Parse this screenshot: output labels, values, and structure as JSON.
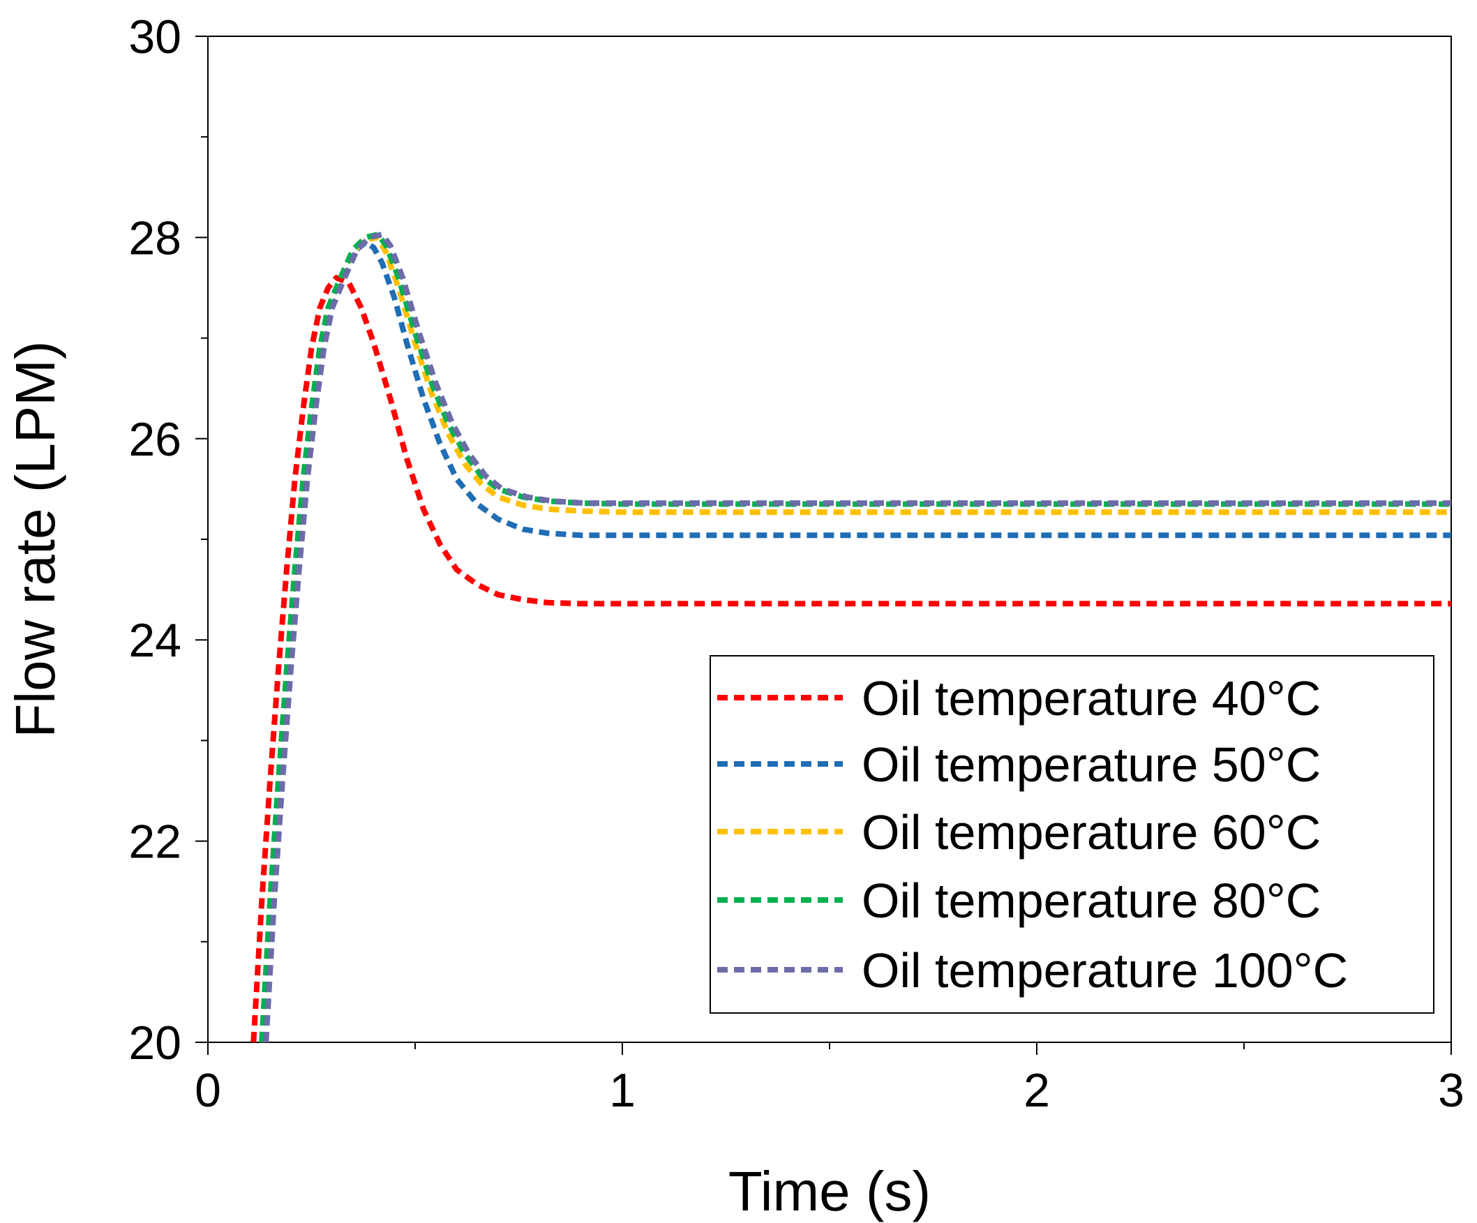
{
  "chart_data": {
    "type": "line",
    "title": "",
    "xlabel": "Time (s)",
    "ylabel": "Flow rate (LPM)",
    "xlim": [
      0,
      3
    ],
    "ylim": [
      20,
      30
    ],
    "x_ticks": [
      0,
      1,
      2,
      3
    ],
    "x_tick_labels": [
      "0",
      "1",
      "2",
      "3"
    ],
    "x_minor_ticks": [
      0.5,
      1.5,
      2.5
    ],
    "y_ticks": [
      20,
      22,
      24,
      26,
      28,
      30
    ],
    "y_tick_labels": [
      "20",
      "22",
      "24",
      "26",
      "28",
      "30"
    ],
    "y_minor_ticks": [
      21,
      23,
      25,
      27,
      29
    ],
    "grid": false,
    "legend_position": "bottom-right",
    "line_style": "dashed",
    "series": [
      {
        "name": "Oil temperature 40°C",
        "color": "#ff0000",
        "x": [
          0.11,
          0.13,
          0.15,
          0.17,
          0.19,
          0.21,
          0.23,
          0.25,
          0.27,
          0.29,
          0.31,
          0.34,
          0.37,
          0.4,
          0.44,
          0.48,
          0.52,
          0.56,
          0.6,
          0.65,
          0.7,
          0.76,
          0.82,
          0.9,
          1.0,
          1.2,
          1.5,
          2.0,
          2.5,
          3.0
        ],
        "values": [
          20.0,
          21.4,
          22.6,
          23.7,
          24.7,
          25.6,
          26.3,
          26.9,
          27.3,
          27.5,
          27.6,
          27.55,
          27.3,
          26.95,
          26.4,
          25.8,
          25.3,
          24.95,
          24.7,
          24.55,
          24.45,
          24.4,
          24.37,
          24.36,
          24.36,
          24.36,
          24.36,
          24.36,
          24.36,
          24.36
        ]
      },
      {
        "name": "Oil temperature 50°C",
        "color": "#1f6db5",
        "x": [
          0.13,
          0.15,
          0.17,
          0.19,
          0.21,
          0.23,
          0.25,
          0.27,
          0.29,
          0.32,
          0.35,
          0.38,
          0.4,
          0.42,
          0.45,
          0.48,
          0.52,
          0.56,
          0.6,
          0.65,
          0.7,
          0.76,
          0.82,
          0.9,
          1.0,
          1.2,
          1.5,
          2.0,
          2.5,
          3.0
        ],
        "values": [
          20.0,
          21.4,
          22.6,
          23.7,
          24.7,
          25.6,
          26.3,
          26.9,
          27.3,
          27.6,
          27.85,
          27.95,
          27.9,
          27.75,
          27.4,
          26.95,
          26.4,
          25.95,
          25.6,
          25.35,
          25.2,
          25.1,
          25.06,
          25.04,
          25.04,
          25.04,
          25.04,
          25.04,
          25.04,
          25.04
        ]
      },
      {
        "name": "Oil temperature 60°C",
        "color": "#ffc000",
        "x": [
          0.13,
          0.15,
          0.17,
          0.19,
          0.21,
          0.23,
          0.25,
          0.27,
          0.29,
          0.32,
          0.35,
          0.38,
          0.41,
          0.43,
          0.46,
          0.5,
          0.54,
          0.58,
          0.62,
          0.66,
          0.7,
          0.76,
          0.82,
          0.9,
          1.0,
          1.2,
          1.5,
          2.0,
          2.5,
          3.0
        ],
        "values": [
          20.0,
          21.4,
          22.6,
          23.7,
          24.7,
          25.6,
          26.3,
          26.9,
          27.3,
          27.6,
          27.85,
          27.98,
          28.0,
          27.85,
          27.5,
          26.95,
          26.45,
          26.05,
          25.75,
          25.55,
          25.42,
          25.34,
          25.3,
          25.28,
          25.27,
          25.27,
          25.27,
          25.27,
          25.27,
          25.27
        ]
      },
      {
        "name": "Oil temperature 80°C",
        "color": "#00b050",
        "x": [
          0.13,
          0.15,
          0.17,
          0.19,
          0.21,
          0.23,
          0.25,
          0.27,
          0.29,
          0.32,
          0.35,
          0.38,
          0.41,
          0.43,
          0.46,
          0.5,
          0.54,
          0.58,
          0.62,
          0.66,
          0.7,
          0.76,
          0.82,
          0.9,
          1.0,
          1.2,
          1.5,
          2.0,
          2.5,
          3.0
        ],
        "values": [
          20.0,
          21.4,
          22.6,
          23.7,
          24.7,
          25.6,
          26.3,
          26.9,
          27.3,
          27.6,
          27.88,
          28.0,
          28.03,
          27.92,
          27.6,
          27.05,
          26.55,
          26.15,
          25.85,
          25.63,
          25.5,
          25.42,
          25.38,
          25.36,
          25.35,
          25.35,
          25.35,
          25.35,
          25.35,
          25.35
        ]
      },
      {
        "name": "Oil temperature 100°C",
        "color": "#6c6ca8",
        "x": [
          0.14,
          0.16,
          0.18,
          0.2,
          0.22,
          0.24,
          0.26,
          0.28,
          0.3,
          0.33,
          0.36,
          0.39,
          0.42,
          0.44,
          0.47,
          0.51,
          0.55,
          0.59,
          0.63,
          0.67,
          0.71,
          0.77,
          0.83,
          0.91,
          1.0,
          1.2,
          1.5,
          2.0,
          2.5,
          3.0
        ],
        "values": [
          20.0,
          21.4,
          22.6,
          23.7,
          24.7,
          25.6,
          26.3,
          26.9,
          27.3,
          27.6,
          27.88,
          28.0,
          28.03,
          27.92,
          27.6,
          27.05,
          26.55,
          26.15,
          25.85,
          25.63,
          25.5,
          25.42,
          25.38,
          25.36,
          25.36,
          25.36,
          25.36,
          25.36,
          25.36,
          25.36
        ]
      }
    ]
  }
}
